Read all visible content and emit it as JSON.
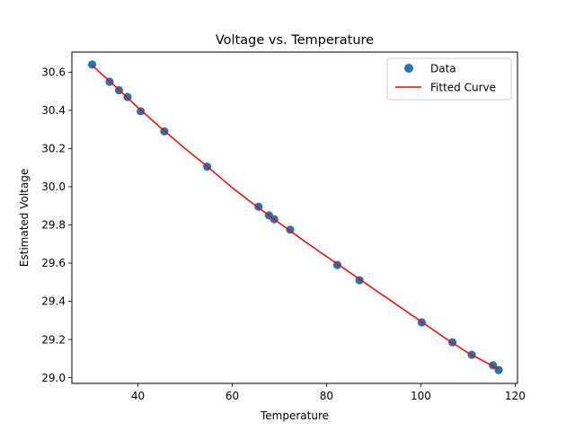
{
  "chart_data": {
    "type": "scatter",
    "title": "Voltage vs. Temperature",
    "xlabel": "Temperature",
    "ylabel": "Estimated Voltage",
    "xlim": [
      26.0,
      120.5
    ],
    "ylim": [
      28.97,
      30.705
    ],
    "xticks": [
      40,
      60,
      80,
      100,
      120
    ],
    "yticks": [
      29.0,
      29.2,
      29.4,
      29.6,
      29.8,
      30.0,
      30.2,
      30.4,
      30.6
    ],
    "grid": false,
    "legend_position": "top-right",
    "series": [
      {
        "name": "Data",
        "kind": "scatter",
        "color": "#1f77b4",
        "points": [
          [
            30.3,
            30.64
          ],
          [
            34.0,
            30.55
          ],
          [
            36.0,
            30.505
          ],
          [
            37.8,
            30.47
          ],
          [
            40.6,
            30.395
          ],
          [
            45.6,
            30.29
          ],
          [
            54.7,
            30.105
          ],
          [
            65.6,
            29.895
          ],
          [
            67.8,
            29.85
          ],
          [
            68.9,
            29.83
          ],
          [
            72.3,
            29.775
          ],
          [
            82.3,
            29.59
          ],
          [
            87.0,
            29.51
          ],
          [
            100.2,
            29.29
          ],
          [
            106.7,
            29.185
          ],
          [
            110.8,
            29.12
          ],
          [
            115.3,
            29.065
          ],
          [
            116.5,
            29.04
          ]
        ]
      },
      {
        "name": "Fitted Curve",
        "kind": "line",
        "color": "#ff0000",
        "points": [
          [
            30.3,
            30.635
          ],
          [
            35,
            30.53
          ],
          [
            40,
            30.415
          ],
          [
            45,
            30.305
          ],
          [
            50,
            30.2
          ],
          [
            55,
            30.1
          ],
          [
            60,
            29.995
          ],
          [
            65,
            29.9
          ],
          [
            70,
            29.81
          ],
          [
            75,
            29.72
          ],
          [
            80,
            29.635
          ],
          [
            85,
            29.55
          ],
          [
            90,
            29.465
          ],
          [
            95,
            29.38
          ],
          [
            100,
            29.295
          ],
          [
            105,
            29.21
          ],
          [
            110,
            29.13
          ],
          [
            116.5,
            29.045
          ]
        ]
      }
    ]
  }
}
